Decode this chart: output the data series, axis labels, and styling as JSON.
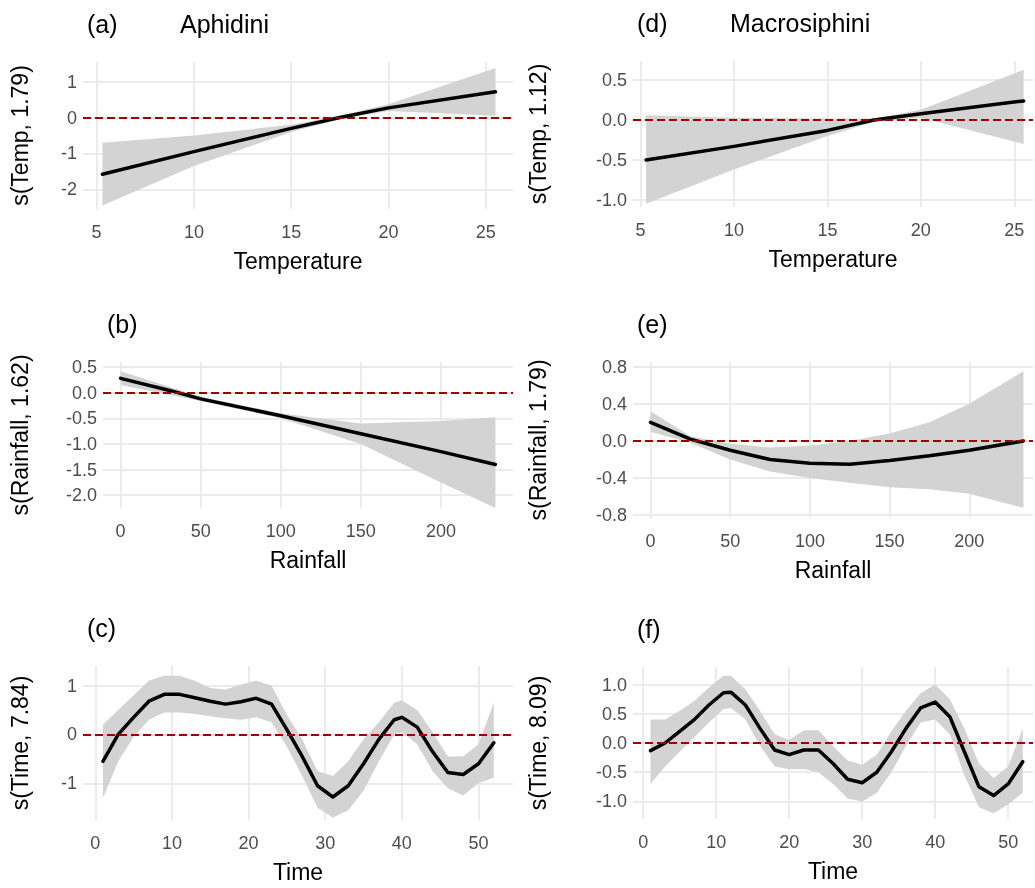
{
  "chart_data": [
    {
      "type": "line",
      "title": "(a)",
      "subtitle": "Aphidini",
      "xlabel": "Temperature",
      "ylabel": "s(Temp, 1.79)",
      "xlim": [
        4.3,
        26.4
      ],
      "xticks": [
        5,
        10,
        15,
        20,
        25
      ],
      "ylim": [
        -2.55,
        1.55
      ],
      "yticks": [
        -2,
        -1,
        0,
        1
      ],
      "grid": true,
      "line_style": "solid",
      "marker": "none",
      "x": [
        5.3,
        10,
        15,
        17.5,
        20,
        25.5
      ],
      "series": [
        {
          "color": "#000000",
          "values": [
            -1.58,
            -0.95,
            -0.3,
            0,
            0.27,
            0.72
          ],
          "lower": [
            -2.45,
            -1.35,
            -0.4,
            -0.05,
            0.18,
            0.05
          ],
          "upper": [
            -0.7,
            -0.5,
            -0.2,
            0.05,
            0.37,
            1.38
          ]
        }
      ],
      "ref_lines": [
        {
          "axis": "y",
          "value": 0,
          "color": "#a00000",
          "line_style": "dashed"
        }
      ]
    },
    {
      "type": "line",
      "title": "(b)",
      "xlabel": "Rainfall",
      "ylabel": "s(Rainfall, 1.62)",
      "xlim": [
        -11,
        245
      ],
      "xticks": [
        0,
        50,
        100,
        150,
        200
      ],
      "ylim": [
        -2.25,
        0.6
      ],
      "yticks": [
        {
          "value": -2,
          "label": "-2.0"
        },
        -1.5,
        {
          "value": -1,
          "label": "-1.0"
        },
        -0.5,
        {
          "value": 0,
          "label": "0.0"
        },
        0.5
      ],
      "grid": true,
      "line_style": "solid",
      "marker": "none",
      "x": [
        0,
        30,
        50,
        100,
        150,
        200,
        234
      ],
      "series": [
        {
          "color": "#000000",
          "values": [
            0.28,
            0.05,
            -0.12,
            -0.45,
            -0.8,
            -1.15,
            -1.4
          ],
          "lower": [
            0.15,
            -0.04,
            -0.16,
            -0.5,
            -1.0,
            -1.75,
            -2.25
          ],
          "upper": [
            0.42,
            0.12,
            -0.08,
            -0.4,
            -0.6,
            -0.55,
            -0.48
          ]
        }
      ],
      "ref_lines": [
        {
          "axis": "y",
          "value": 0,
          "color": "#a00000",
          "line_style": "dashed"
        }
      ]
    },
    {
      "type": "line",
      "title": "(c)",
      "xlabel": "Time",
      "ylabel": "s(Time, 7.84)",
      "xlim": [
        -1.6,
        54.5
      ],
      "xticks": [
        0,
        10,
        20,
        30,
        40,
        50
      ],
      "ylim": [
        -1.75,
        1.4
      ],
      "yticks": [
        -1,
        0,
        1
      ],
      "grid": true,
      "line_style": "solid",
      "marker": "none",
      "x": [
        1,
        3,
        5,
        7,
        9,
        11,
        13,
        15,
        17,
        19,
        21,
        23,
        25,
        27,
        29,
        31,
        33,
        35,
        37,
        39,
        40,
        42,
        44,
        46,
        48,
        50,
        52
      ],
      "series": [
        {
          "color": "#000000",
          "values": [
            -0.55,
            0.0,
            0.35,
            0.68,
            0.82,
            0.82,
            0.75,
            0.68,
            0.62,
            0.67,
            0.74,
            0.62,
            0.1,
            -0.45,
            -1.05,
            -1.28,
            -1.05,
            -0.6,
            -0.1,
            0.3,
            0.35,
            0.15,
            -0.35,
            -0.78,
            -0.82,
            -0.6,
            -0.17
          ],
          "lower": [
            -1.3,
            -0.55,
            -0.05,
            0.3,
            0.45,
            0.45,
            0.42,
            0.37,
            0.33,
            0.3,
            0.35,
            0.25,
            -0.25,
            -0.85,
            -1.5,
            -1.7,
            -1.55,
            -1.15,
            -0.55,
            0.0,
            0.05,
            -0.2,
            -0.75,
            -1.1,
            -1.25,
            -1.0,
            -0.88
          ],
          "upper": [
            0.2,
            0.5,
            0.8,
            1.1,
            1.2,
            1.2,
            1.1,
            0.95,
            0.92,
            1.02,
            1.1,
            1.0,
            0.4,
            -0.1,
            -0.75,
            -0.85,
            -0.55,
            -0.1,
            0.25,
            0.65,
            0.7,
            0.5,
            0.05,
            -0.45,
            -0.45,
            -0.2,
            0.65
          ]
        }
      ],
      "ref_lines": [
        {
          "axis": "y",
          "value": 0,
          "color": "#a00000",
          "line_style": "dashed"
        }
      ]
    },
    {
      "type": "line",
      "title": "(d)",
      "subtitle": "Macrosiphini",
      "xlabel": "Temperature",
      "ylabel": "s(Temp, 1.12)",
      "xlim": [
        4.6,
        26
      ],
      "xticks": [
        5,
        10,
        15,
        20,
        25
      ],
      "ylim": [
        -1.09,
        0.74
      ],
      "yticks": [
        {
          "value": -1,
          "label": "-1.0"
        },
        -0.5,
        {
          "value": 0,
          "label": "0.0"
        },
        0.5
      ],
      "grid": true,
      "line_style": "solid",
      "marker": "none",
      "x": [
        5.3,
        10,
        15,
        17.5,
        20,
        25.5
      ],
      "series": [
        {
          "color": "#000000",
          "values": [
            -0.5,
            -0.33,
            -0.13,
            0,
            0.08,
            0.24
          ],
          "lower": [
            -1.05,
            -0.62,
            -0.2,
            -0.02,
            0.03,
            -0.3
          ],
          "upper": [
            0.06,
            0.03,
            0.02,
            0.02,
            0.13,
            0.63
          ]
        }
      ],
      "ref_lines": [
        {
          "axis": "y",
          "value": 0,
          "color": "#a00000",
          "line_style": "dashed"
        }
      ]
    },
    {
      "type": "line",
      "title": "(e)",
      "xlabel": "Rainfall",
      "ylabel": "s(Rainfall, 1.79)",
      "xlim": [
        -11,
        240
      ],
      "xticks": [
        0,
        50,
        100,
        150,
        200
      ],
      "ylim": [
        -0.83,
        0.85
      ],
      "yticks": [
        -0.8,
        -0.4,
        {
          "value": 0,
          "label": "0.0"
        },
        0.4,
        0.8
      ],
      "grid": true,
      "line_style": "solid",
      "marker": "none",
      "x": [
        0,
        25,
        50,
        75,
        100,
        125,
        150,
        175,
        200,
        234
      ],
      "series": [
        {
          "color": "#000000",
          "values": [
            0.2,
            0.02,
            -0.1,
            -0.2,
            -0.24,
            -0.25,
            -0.21,
            -0.16,
            -0.1,
            0.0
          ],
          "lower": [
            0.1,
            -0.02,
            -0.2,
            -0.33,
            -0.4,
            -0.45,
            -0.5,
            -0.52,
            -0.57,
            -0.72
          ],
          "upper": [
            0.32,
            0.05,
            -0.03,
            -0.07,
            -0.05,
            0.0,
            0.08,
            0.2,
            0.4,
            0.75
          ]
        }
      ],
      "ref_lines": [
        {
          "axis": "y",
          "value": 0,
          "color": "#a00000",
          "line_style": "dashed"
        }
      ]
    },
    {
      "type": "line",
      "title": "(f)",
      "xlabel": "Time",
      "ylabel": "s(Time, 8.09)",
      "xlim": [
        -1.4,
        53.4
      ],
      "xticks": [
        0,
        10,
        20,
        30,
        40,
        50
      ],
      "ylim": [
        -1.3,
        1.3
      ],
      "yticks": [
        {
          "value": -1,
          "label": "-1.0"
        },
        -0.5,
        {
          "value": 0,
          "label": "0.0"
        },
        0.5,
        {
          "value": 1,
          "label": "1.0"
        }
      ],
      "grid": true,
      "line_style": "solid",
      "marker": "none",
      "x": [
        1,
        3,
        5,
        7,
        9,
        11,
        12,
        14,
        16,
        18,
        20,
        22,
        24,
        26,
        28,
        30,
        32,
        34,
        36,
        38,
        40,
        42,
        44,
        46,
        48,
        50,
        52
      ],
      "series": [
        {
          "color": "#000000",
          "values": [
            -0.13,
            0.0,
            0.2,
            0.4,
            0.65,
            0.86,
            0.87,
            0.65,
            0.25,
            -0.12,
            -0.2,
            -0.12,
            -0.12,
            -0.35,
            -0.62,
            -0.68,
            -0.5,
            -0.15,
            0.25,
            0.6,
            0.7,
            0.45,
            -0.15,
            -0.75,
            -0.9,
            -0.7,
            -0.32
          ],
          "lower": [
            -0.7,
            -0.4,
            -0.15,
            0.1,
            0.35,
            0.58,
            0.6,
            0.4,
            -0.05,
            -0.4,
            -0.45,
            -0.45,
            -0.5,
            -0.7,
            -0.95,
            -1.0,
            -0.85,
            -0.5,
            -0.05,
            0.35,
            0.4,
            0.15,
            -0.55,
            -1.1,
            -1.2,
            -1.05,
            -0.85
          ],
          "upper": [
            0.4,
            0.4,
            0.55,
            0.72,
            0.95,
            1.15,
            1.15,
            0.92,
            0.55,
            0.15,
            0.05,
            0.22,
            0.22,
            -0.05,
            -0.3,
            -0.37,
            -0.2,
            0.2,
            0.55,
            0.85,
            1.0,
            0.75,
            0.25,
            -0.35,
            -0.6,
            -0.4,
            0.25
          ]
        }
      ],
      "ref_lines": [
        {
          "axis": "y",
          "value": 0,
          "color": "#a00000",
          "line_style": "dashed"
        }
      ]
    }
  ]
}
